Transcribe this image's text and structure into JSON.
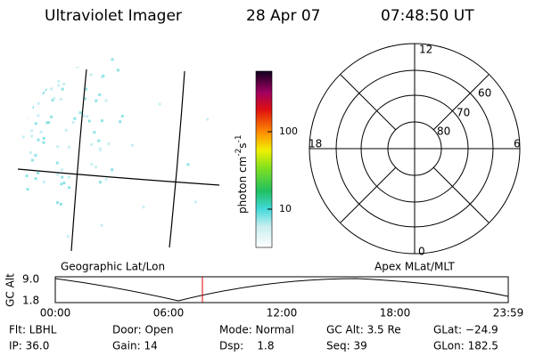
{
  "header": {
    "title": "Ultraviolet Imager",
    "date": "28 Apr 07",
    "time": "07:48:50 UT"
  },
  "colorbar": {
    "label": {
      "base": "photon cm",
      "exp1": "-2",
      "unit": "s",
      "exp2": "-1"
    },
    "ticks": [
      "100",
      "10"
    ]
  },
  "polar": {
    "mlt_labels": [
      "12",
      "18",
      "6",
      "0"
    ],
    "lat_labels": [
      "60",
      "70",
      "80"
    ]
  },
  "projections": {
    "left": "Geographic Lat/Lon",
    "right": "Apex MLat/MLT"
  },
  "timeline": {
    "ylabel": "GC Alt",
    "yticks": [
      "9.0",
      "1.8"
    ],
    "xticks": [
      "00:00",
      "06:00",
      "12:00",
      "18:00",
      "23:59"
    ]
  },
  "footer": {
    "rows": [
      [
        "Flt: LBHL",
        "Door: Open",
        "Mode: Normal",
        "GC Alt: 3.5 Re",
        "GLat: −24.9"
      ],
      [
        "IP: 36.0",
        "Gain: 14",
        "Dsp:    1.8",
        "Seq: 39",
        "GLon: 182.5"
      ]
    ]
  }
}
